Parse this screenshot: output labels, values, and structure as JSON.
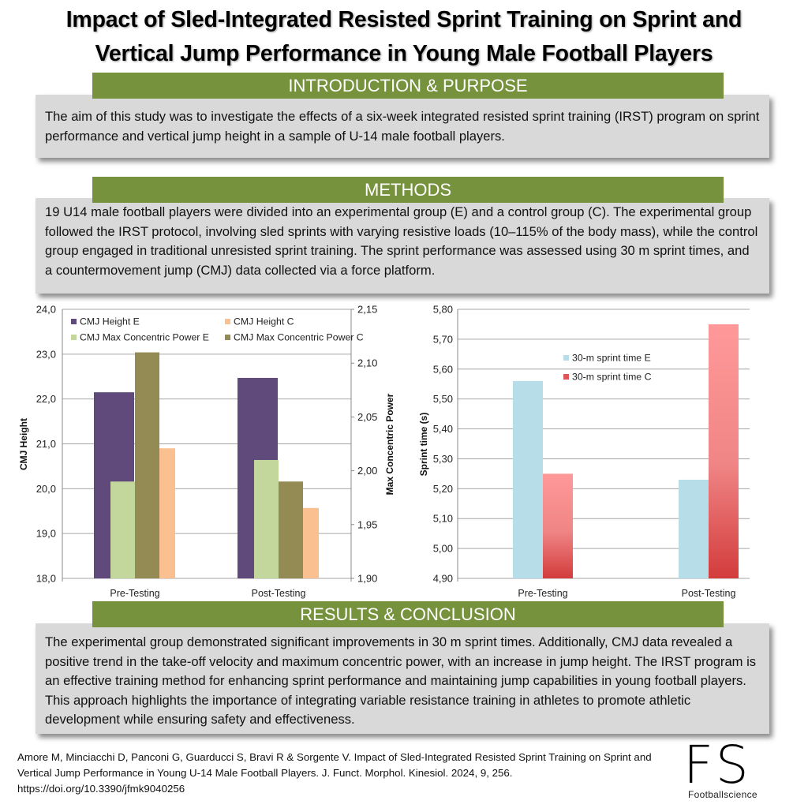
{
  "title": {
    "line1": "Impact of Sled-Integrated Resisted Sprint Training on Sprint and",
    "line2": "Vertical Jump Performance in Young Male Football Players"
  },
  "introduction": {
    "heading": "INTRODUCTION & PURPOSE",
    "text": "The aim of this study was to investigate the effects of a six-week integrated resisted sprint training (IRST) program on sprint performance and vertical jump height in a sample of U-14 male football players."
  },
  "methods": {
    "heading": "METHODS",
    "text": "19 U14 male football players were divided into an experimental group (E) and a control group (C). The experimental group followed the IRST protocol, involving sled sprints with varying resistive loads (10–115% of the body mass), while the control group engaged in traditional unresisted sprint training. The sprint performance was assessed using 30 m sprint times, and a countermovement jump (CMJ) data collected via a force platform."
  },
  "results": {
    "heading": "RESULTS & CONCLUSION",
    "text": "The experimental group demonstrated significant improvements in 30 m sprint times. Additionally, CMJ data revealed a positive trend in the take-off velocity and maximum concentric power, with an increase in jump height. The IRST program is an effective training method for enhancing sprint performance and maintaining jump capabilities in young football players. This approach highlights the importance of integrating variable resistance training in athletes to promote athletic development while ensuring safety and effectiveness."
  },
  "citation": "Amore M, Minciacchi D, Panconi G, Guarducci S, Bravi R & Sorgente V. Impact of Sled-Integrated Resisted Sprint Training on Sprint and Vertical Jump Performance in Young U-14 Male Football Players. J. Funct. Morphol. Kinesiol. 2024, 9, 256. https://doi.org/10.3390/jfmk9040256",
  "logo": {
    "mark": "FS",
    "name": "Footballscience"
  },
  "colors": {
    "banner": "#76923c",
    "box": "#d9d9d9"
  },
  "chart_data": [
    {
      "type": "bar",
      "categories": [
        "Pre-Testing",
        "Post-Testing"
      ],
      "ylabel": "CMJ Height",
      "y2label": "Max Concentric Power",
      "ylim": [
        18.0,
        24.0
      ],
      "y2lim": [
        1.9,
        2.15
      ],
      "yticks": [
        "18,0",
        "19,0",
        "20,0",
        "21,0",
        "22,0",
        "23,0",
        "24,0"
      ],
      "y2ticks": [
        "1,90",
        "1,95",
        "2,00",
        "2,05",
        "2,10",
        "2,15"
      ],
      "grid": true,
      "legend": "top",
      "series": [
        {
          "name": "CMJ Height E",
          "axis": "left",
          "values": [
            22.15,
            22.47
          ],
          "color": "#604a7b"
        },
        {
          "name": "CMJ Height C",
          "axis": "left",
          "values": [
            20.9,
            19.57
          ],
          "color": "#fac090"
        },
        {
          "name": "CMJ Max Concentric Power E",
          "axis": "right",
          "values": [
            1.99,
            2.01
          ],
          "color": "#c3d69b"
        },
        {
          "name": "CMJ Max Concentric Power C",
          "axis": "right",
          "values": [
            2.11,
            1.99
          ],
          "color": "#948a54"
        }
      ]
    },
    {
      "type": "bar",
      "categories": [
        "Pre-Testing",
        "Post-Testing"
      ],
      "ylabel": "Sprint time (s)",
      "ylim": [
        4.9,
        5.8
      ],
      "yticks": [
        "4,90",
        "5,00",
        "5,10",
        "5,20",
        "5,30",
        "5,40",
        "5,50",
        "5,60",
        "5,70",
        "5,80"
      ],
      "grid": true,
      "legend": "center",
      "series": [
        {
          "name": "30-m sprint time E",
          "values": [
            5.56,
            5.23
          ],
          "color": "#b7dee8"
        },
        {
          "name": "30-m sprint time C",
          "values": [
            5.25,
            5.75
          ],
          "color": "#ff9999"
        }
      ]
    }
  ]
}
